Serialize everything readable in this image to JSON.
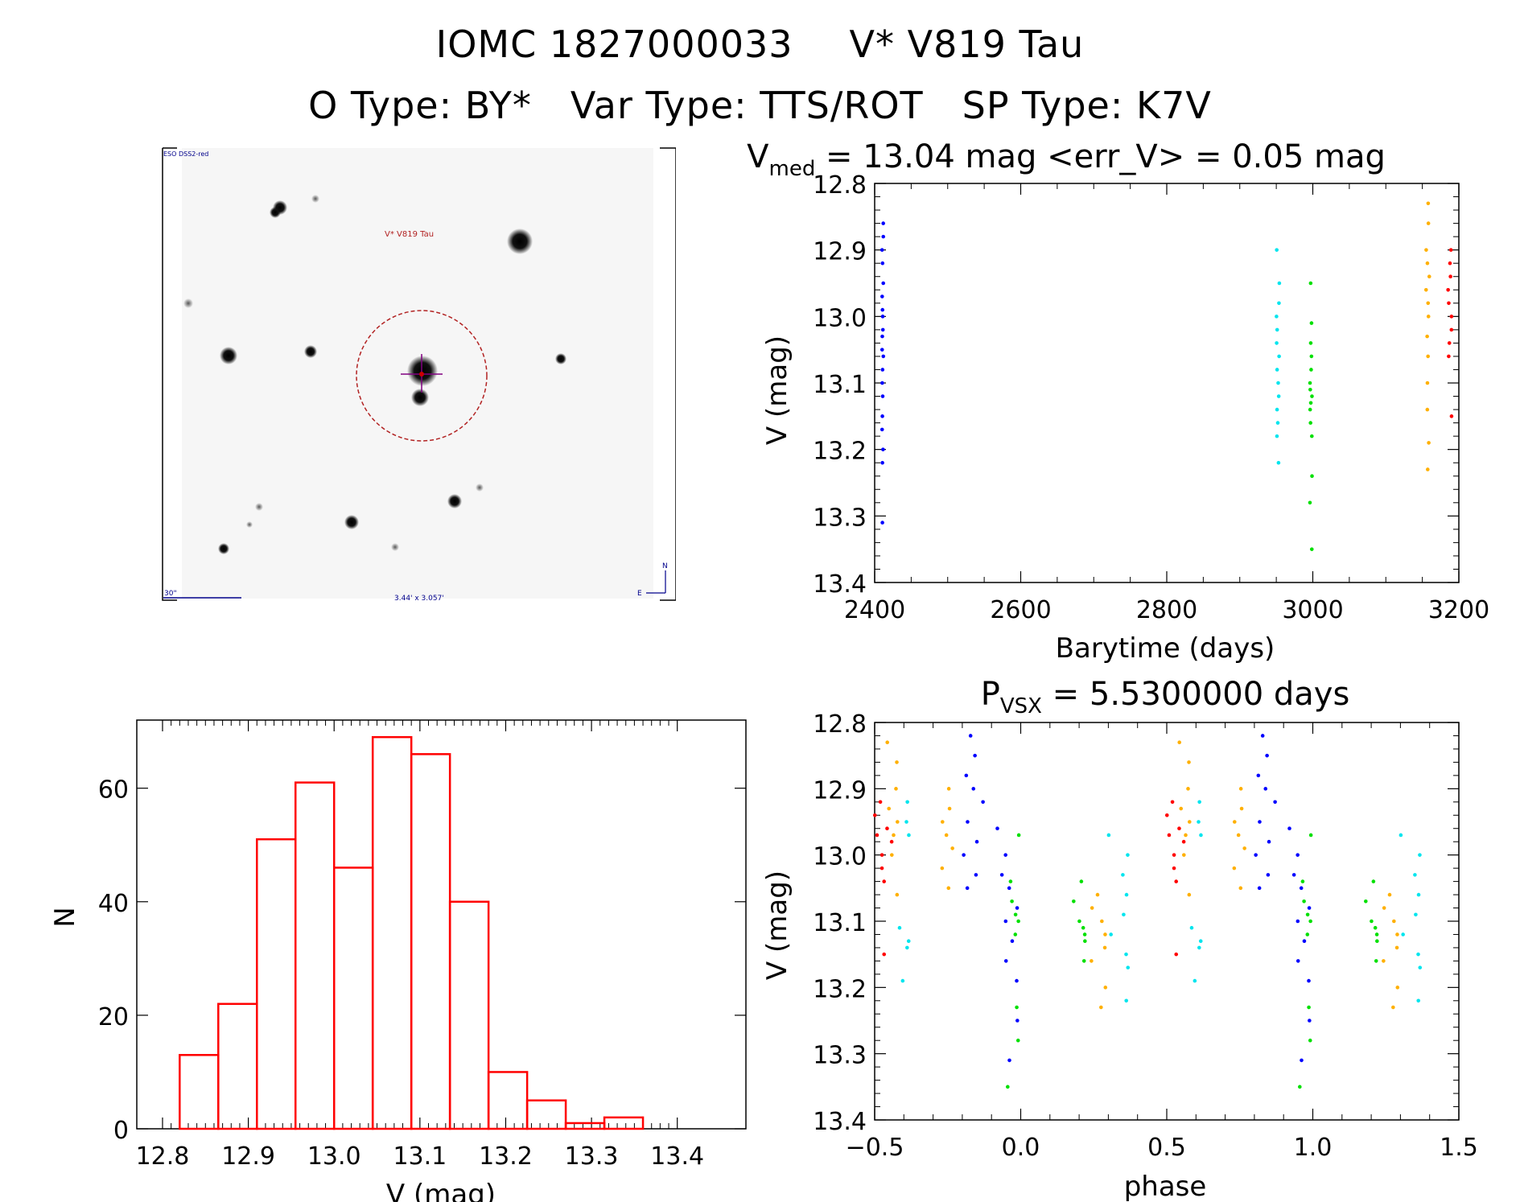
{
  "header": {
    "name_ids": [
      "IOMC 1827000033",
      "V* V819 Tau"
    ],
    "types": [
      "O Type: BY*",
      "Var Type: TTS/ROT",
      "SP Type: K7V"
    ]
  },
  "finder_chart": {
    "survey_label": "ESO DSS2-red",
    "target_label": "V* V819 Tau",
    "scale_label": "30\"",
    "size_label": "3.44' x 3.057'",
    "compass_n": "N",
    "compass_e": "E",
    "colors": {
      "frame": "#000000",
      "circle": "#b22222",
      "cross": "#800080",
      "labels": "#00008b"
    }
  },
  "chart_data": [
    {
      "id": "lightcurve",
      "type": "scatter",
      "title_main": "V",
      "title_sub": "med",
      "title_rest": " = 13.04 mag <err_V> = 0.05 mag",
      "xlabel": "Barytime (days)",
      "ylabel": "V (mag)",
      "xlim": [
        2400,
        3200
      ],
      "ylim": [
        12.8,
        13.4
      ],
      "y_inverted": true,
      "xticks": [
        2400,
        2600,
        2800,
        3000,
        3200
      ],
      "yticks": [
        12.8,
        12.9,
        13.0,
        13.1,
        13.2,
        13.3,
        13.4
      ],
      "series": [
        {
          "color": "#0000ff",
          "x_range": [
            2410,
            2412
          ],
          "y_values": [
            12.86,
            12.88,
            12.9,
            12.92,
            12.95,
            12.97,
            12.99,
            13.0,
            13.02,
            13.03,
            13.05,
            13.06,
            13.08,
            13.1,
            13.12,
            13.15,
            13.17,
            13.2,
            13.22,
            13.31
          ]
        },
        {
          "color": "#00e5ee",
          "x_range": [
            2950,
            2955
          ],
          "y_values": [
            12.9,
            12.95,
            12.98,
            13.0,
            13.02,
            13.04,
            13.06,
            13.08,
            13.1,
            13.12,
            13.14,
            13.16,
            13.18,
            13.22
          ]
        },
        {
          "color": "#00e000",
          "x_range": [
            2996,
            2999
          ],
          "y_values": [
            12.95,
            13.01,
            13.04,
            13.06,
            13.08,
            13.1,
            13.11,
            13.12,
            13.13,
            13.14,
            13.16,
            13.18,
            13.24,
            13.28,
            13.35
          ]
        },
        {
          "color": "#ffb000",
          "x_range": [
            3155,
            3160
          ],
          "y_values": [
            12.83,
            12.86,
            12.9,
            12.92,
            12.94,
            12.96,
            12.98,
            13.0,
            13.03,
            13.06,
            13.1,
            13.14,
            13.19,
            13.23
          ]
        },
        {
          "color": "#ff0000",
          "x_range": [
            3185,
            3190
          ],
          "y_values": [
            12.9,
            12.92,
            12.94,
            12.96,
            12.98,
            13.0,
            13.02,
            13.04,
            13.06,
            13.15
          ]
        }
      ]
    },
    {
      "id": "histogram",
      "type": "bar",
      "xlabel": "V (mag)",
      "ylabel": "N",
      "xlim": [
        12.77,
        13.48
      ],
      "ylim": [
        0,
        72
      ],
      "xticks": [
        12.8,
        12.9,
        13.0,
        13.1,
        13.2,
        13.3,
        13.4
      ],
      "yticks": [
        0,
        20,
        40,
        60
      ],
      "bin_edges": [
        12.82,
        12.865,
        12.91,
        12.955,
        13.0,
        13.045,
        13.09,
        13.135,
        13.18,
        13.225,
        13.27,
        13.315,
        13.36
      ],
      "values": [
        13,
        22,
        51,
        61,
        46,
        69,
        66,
        40,
        10,
        5,
        1,
        2
      ],
      "color": "#ff0000"
    },
    {
      "id": "phased",
      "type": "scatter",
      "title_main": "P",
      "title_sub": "VSX",
      "title_rest": " = 5.5300000 days",
      "xlabel": "phase",
      "ylabel": "V (mag)",
      "xlim": [
        -0.5,
        1.5
      ],
      "ylim": [
        12.8,
        13.4
      ],
      "y_inverted": true,
      "xticks": [
        -0.5,
        0.0,
        0.5,
        1.0,
        1.5
      ],
      "xtick_labels": [
        "−0.5",
        "0.0",
        "0.5",
        "1.0",
        "1.5"
      ],
      "yticks": [
        12.8,
        12.9,
        13.0,
        13.1,
        13.2,
        13.3,
        13.4
      ],
      "series": [
        {
          "color": "#ff0000",
          "phase_range": [
            -0.5,
            -0.44
          ],
          "y_values": [
            12.92,
            12.94,
            12.96,
            12.97,
            12.98,
            13.0,
            13.02,
            13.04,
            13.15
          ]
        },
        {
          "color": "#ffb000",
          "phase_range": [
            -0.46,
            -0.42
          ],
          "y_values": [
            12.83,
            12.86,
            12.9,
            12.93,
            12.95,
            12.97,
            13.0,
            13.06
          ]
        },
        {
          "color": "#00e5ee",
          "phase_range": [
            -0.43,
            -0.38
          ],
          "y_values": [
            12.92,
            12.95,
            12.97,
            13.11,
            13.13,
            13.14,
            13.19
          ]
        },
        {
          "color": "#ffb000",
          "phase_range": [
            -0.27,
            -0.23
          ],
          "y_values": [
            12.9,
            12.93,
            12.95,
            12.97,
            12.99,
            13.02,
            13.05
          ]
        },
        {
          "color": "#0000ff",
          "phase_range": [
            -0.2,
            -0.12
          ],
          "y_values": [
            12.82,
            12.85,
            12.88,
            12.9,
            12.92,
            12.95,
            12.98,
            13.0,
            13.03,
            13.05
          ]
        },
        {
          "color": "#0000ff",
          "phase_range": [
            -0.09,
            0.0
          ],
          "y_values": [
            12.96,
            13.0,
            13.03,
            13.05,
            13.08,
            13.1,
            13.13,
            13.16,
            13.19,
            13.25,
            13.31
          ]
        },
        {
          "color": "#00e000",
          "phase_range": [
            -0.05,
            0.0
          ],
          "y_values": [
            12.97,
            13.04,
            13.07,
            13.09,
            13.1,
            13.12,
            13.23,
            13.28,
            13.35
          ]
        },
        {
          "color": "#00e000",
          "phase_range": [
            0.17,
            0.23
          ],
          "y_values": [
            13.04,
            13.07,
            13.1,
            13.11,
            13.12,
            13.13,
            13.16
          ]
        },
        {
          "color": "#ffb000",
          "phase_range": [
            0.24,
            0.3
          ],
          "y_values": [
            13.06,
            13.08,
            13.1,
            13.12,
            13.14,
            13.16,
            13.2,
            13.23
          ]
        },
        {
          "color": "#00e5ee",
          "phase_range": [
            0.29,
            0.37
          ],
          "y_values": [
            12.97,
            13.0,
            13.03,
            13.06,
            13.09,
            13.12,
            13.15,
            13.17,
            13.22
          ]
        }
      ]
    }
  ]
}
